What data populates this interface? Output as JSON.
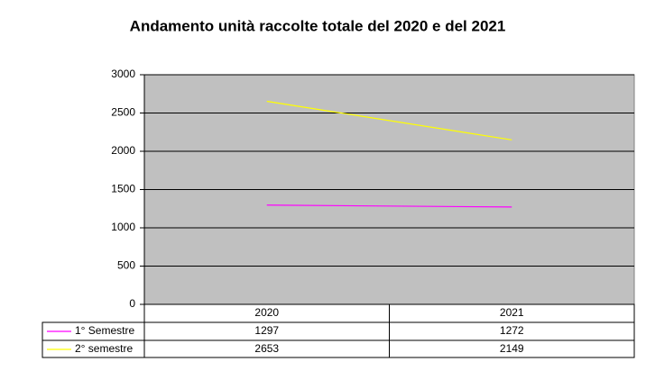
{
  "chart_data": {
    "type": "line",
    "title": "Andamento unità raccolte totale del 2020 e del 2021",
    "categories": [
      "2020",
      "2021"
    ],
    "series": [
      {
        "name": "1° Semestre",
        "color": "#ff00ff",
        "values": [
          1297,
          1272
        ]
      },
      {
        "name": "2° semestre",
        "color": "#ffff00",
        "values": [
          2653,
          2149
        ]
      }
    ],
    "ylim": [
      0,
      3000
    ],
    "yticks": [
      0,
      500,
      1000,
      1500,
      2000,
      2500,
      3000
    ],
    "grid": true
  }
}
